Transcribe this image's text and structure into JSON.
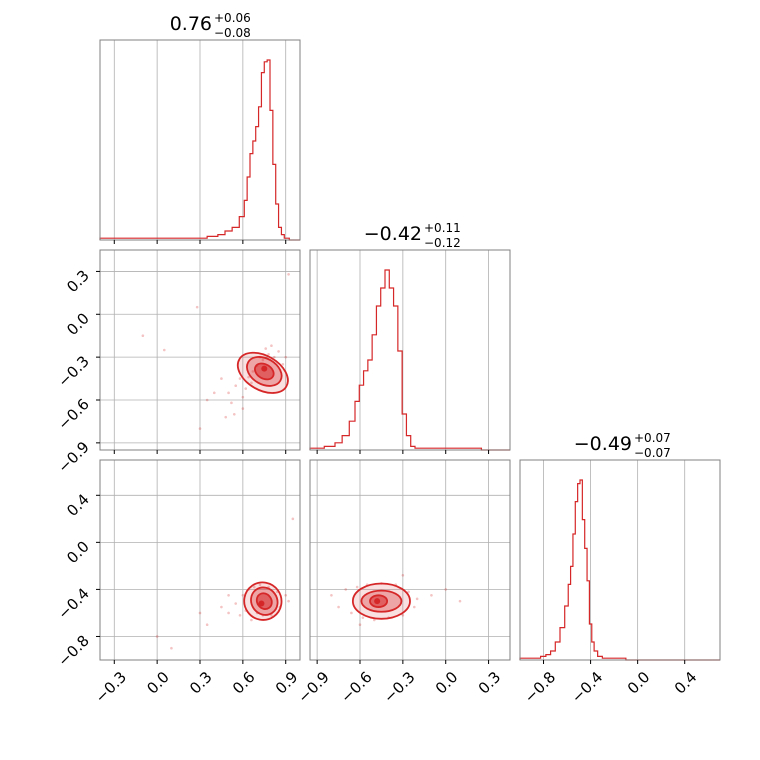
{
  "colors": {
    "series": "#d62728",
    "grid": "#b0b0b0",
    "frame": "#808080"
  },
  "chart_data": {
    "type": "corner",
    "grid": true,
    "parameters": [
      {
        "title": {
          "median": "0.76",
          "plus": "+0.06",
          "minus": "−0.08"
        },
        "range": [
          -0.4,
          1.0
        ],
        "ticks": [
          -0.3,
          0.0,
          0.3,
          0.6,
          0.9
        ],
        "tick_labels": [
          "−0.3",
          "0.0",
          "0.3",
          "0.6",
          "0.9"
        ],
        "hist": {
          "x": [
            0.0,
            0.1,
            0.2,
            0.3,
            0.4,
            0.45,
            0.5,
            0.55,
            0.6,
            0.62,
            0.64,
            0.66,
            0.68,
            0.7,
            0.72,
            0.74,
            0.76,
            0.78,
            0.8,
            0.82,
            0.84,
            0.86,
            0.88,
            0.9,
            0.95
          ],
          "density": [
            0.01,
            0.01,
            0.01,
            0.01,
            0.02,
            0.03,
            0.05,
            0.07,
            0.13,
            0.22,
            0.35,
            0.48,
            0.55,
            0.63,
            0.74,
            0.93,
            0.99,
            1.0,
            0.72,
            0.42,
            0.2,
            0.07,
            0.03,
            0.01,
            0.0
          ]
        }
      },
      {
        "title": {
          "median": "−0.42",
          "plus": "+0.11",
          "minus": "−0.12"
        },
        "range": [
          -0.95,
          0.45
        ],
        "ticks": [
          -0.9,
          -0.6,
          -0.3,
          0.0,
          0.3
        ],
        "tick_labels": [
          "−0.9",
          "−0.6",
          "−0.3",
          "0.0",
          "0.3"
        ],
        "hist": {
          "x": [
            -0.9,
            -0.8,
            -0.75,
            -0.7,
            -0.65,
            -0.62,
            -0.59,
            -0.56,
            -0.53,
            -0.5,
            -0.47,
            -0.44,
            -0.41,
            -0.38,
            -0.35,
            -0.32,
            -0.29,
            -0.26,
            -0.23,
            -0.2,
            -0.1,
            0.0,
            0.1,
            0.2,
            0.3,
            0.4
          ],
          "density": [
            0.01,
            0.02,
            0.04,
            0.08,
            0.16,
            0.27,
            0.36,
            0.44,
            0.5,
            0.64,
            0.8,
            0.9,
            1.0,
            0.9,
            0.8,
            0.55,
            0.2,
            0.08,
            0.02,
            0.01,
            0.01,
            0.01,
            0.01,
            0.01,
            0.0,
            0.0
          ]
        }
      },
      {
        "title": {
          "median": "−0.49",
          "plus": "+0.07",
          "minus": "−0.07"
        },
        "range": [
          -1.0,
          0.7
        ],
        "ticks": [
          -0.8,
          -0.4,
          0.0,
          0.4
        ],
        "tick_labels": [
          "−0.8",
          "−0.4",
          "0.0",
          "0.4"
        ],
        "hist": {
          "x": [
            -0.95,
            -0.85,
            -0.8,
            -0.76,
            -0.72,
            -0.68,
            -0.64,
            -0.6,
            -0.58,
            -0.56,
            -0.54,
            -0.52,
            -0.5,
            -0.48,
            -0.46,
            -0.44,
            -0.42,
            -0.4,
            -0.38,
            -0.36,
            -0.32,
            -0.28,
            -0.2,
            0.0,
            0.4
          ],
          "density": [
            0.01,
            0.01,
            0.02,
            0.03,
            0.05,
            0.1,
            0.18,
            0.3,
            0.42,
            0.52,
            0.7,
            0.88,
            0.98,
            1.0,
            0.78,
            0.62,
            0.44,
            0.2,
            0.1,
            0.05,
            0.02,
            0.01,
            0.01,
            0.0,
            0.0
          ]
        }
      }
    ],
    "pairs": [
      {
        "x_param": 0,
        "y_param": 1,
        "scatter": [
          [
            -0.1,
            -0.15
          ],
          [
            0.05,
            -0.25
          ],
          [
            0.35,
            -0.6
          ],
          [
            0.4,
            -0.55
          ],
          [
            0.45,
            -0.45
          ],
          [
            0.5,
            -0.55
          ],
          [
            0.52,
            -0.62
          ],
          [
            0.55,
            -0.5
          ],
          [
            0.58,
            -0.45
          ],
          [
            0.6,
            -0.58
          ],
          [
            0.62,
            -0.52
          ],
          [
            0.64,
            -0.44
          ],
          [
            0.66,
            -0.48
          ],
          [
            0.67,
            -0.4
          ],
          [
            0.7,
            -0.36
          ],
          [
            0.72,
            -0.3
          ],
          [
            0.74,
            -0.32
          ],
          [
            0.76,
            -0.24
          ],
          [
            0.78,
            -0.28
          ],
          [
            0.8,
            -0.22
          ],
          [
            0.82,
            -0.3
          ],
          [
            0.85,
            -0.26
          ],
          [
            0.88,
            -0.35
          ],
          [
            0.9,
            -0.3
          ],
          [
            0.6,
            -0.66
          ],
          [
            0.54,
            -0.7
          ],
          [
            0.48,
            -0.72
          ],
          [
            0.3,
            -0.8
          ],
          [
            0.28,
            0.05
          ],
          [
            0.92,
            0.28
          ]
        ],
        "contours": [
          {
            "cx": 0.75,
            "cy": -0.4,
            "rx": 0.05,
            "ry": 0.07,
            "angle": 60
          },
          {
            "cx": 0.75,
            "cy": -0.4,
            "rx": 0.09,
            "ry": 0.13,
            "angle": 60
          },
          {
            "cx": 0.74,
            "cy": -0.41,
            "rx": 0.12,
            "ry": 0.19,
            "angle": 60
          }
        ],
        "mode": [
          0.75,
          -0.38
        ]
      },
      {
        "x_param": 0,
        "y_param": 2,
        "scatter": [
          [
            0.0,
            -0.8
          ],
          [
            0.1,
            -0.9
          ],
          [
            0.35,
            -0.7
          ],
          [
            0.45,
            -0.55
          ],
          [
            0.5,
            -0.6
          ],
          [
            0.55,
            -0.52
          ],
          [
            0.58,
            -0.62
          ],
          [
            0.6,
            -0.45
          ],
          [
            0.62,
            -0.58
          ],
          [
            0.64,
            -0.4
          ],
          [
            0.66,
            -0.66
          ],
          [
            0.68,
            -0.38
          ],
          [
            0.7,
            -0.6
          ],
          [
            0.72,
            -0.36
          ],
          [
            0.74,
            -0.62
          ],
          [
            0.78,
            -0.38
          ],
          [
            0.8,
            -0.62
          ],
          [
            0.84,
            -0.42
          ],
          [
            0.86,
            -0.55
          ],
          [
            0.9,
            -0.45
          ],
          [
            0.92,
            -0.5
          ],
          [
            0.3,
            -0.6
          ],
          [
            0.5,
            -0.45
          ],
          [
            0.95,
            0.2
          ]
        ],
        "contours": [
          {
            "cx": 0.75,
            "cy": -0.5,
            "rx": 0.05,
            "ry": 0.07,
            "angle": 35
          },
          {
            "cx": 0.75,
            "cy": -0.5,
            "rx": 0.09,
            "ry": 0.12,
            "angle": 35
          },
          {
            "cx": 0.74,
            "cy": -0.5,
            "rx": 0.13,
            "ry": 0.16,
            "angle": 35
          }
        ],
        "mode": [
          0.73,
          -0.52
        ]
      },
      {
        "x_param": 1,
        "y_param": 2,
        "scatter": [
          [
            -0.8,
            -0.45
          ],
          [
            -0.75,
            -0.55
          ],
          [
            -0.7,
            -0.4
          ],
          [
            -0.66,
            -0.6
          ],
          [
            -0.62,
            -0.38
          ],
          [
            -0.58,
            -0.64
          ],
          [
            -0.55,
            -0.36
          ],
          [
            -0.5,
            -0.66
          ],
          [
            -0.45,
            -0.35
          ],
          [
            -0.4,
            -0.64
          ],
          [
            -0.35,
            -0.36
          ],
          [
            -0.3,
            -0.62
          ],
          [
            -0.26,
            -0.42
          ],
          [
            -0.22,
            -0.55
          ],
          [
            -0.2,
            -0.48
          ],
          [
            -0.1,
            -0.45
          ],
          [
            0.0,
            -0.4
          ],
          [
            0.1,
            -0.5
          ],
          [
            -0.6,
            -0.7
          ],
          [
            -0.3,
            -0.28
          ]
        ],
        "contours": [
          {
            "cx": -0.47,
            "cy": -0.5,
            "rx": 0.06,
            "ry": 0.05,
            "angle": 0
          },
          {
            "cx": -0.45,
            "cy": -0.5,
            "rx": 0.14,
            "ry": 0.09,
            "angle": 0
          },
          {
            "cx": -0.45,
            "cy": -0.5,
            "rx": 0.2,
            "ry": 0.15,
            "angle": 0
          }
        ],
        "mode": [
          -0.48,
          -0.5
        ]
      }
    ]
  }
}
